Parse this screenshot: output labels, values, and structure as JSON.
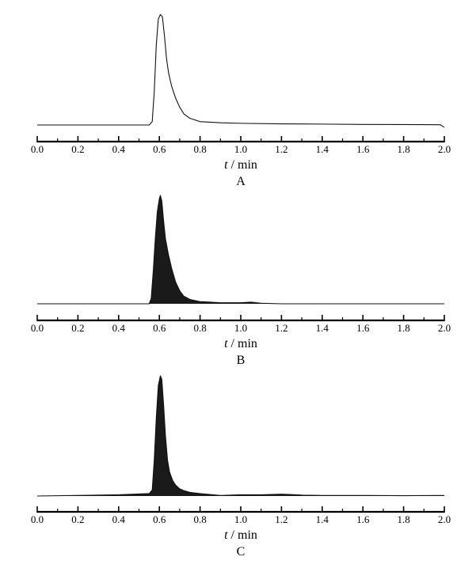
{
  "chart_data": [
    {
      "type": "line",
      "panel_label": "A",
      "xlabel_var": "t",
      "xlabel_unit": " / min",
      "xlim": [
        0.0,
        2.0
      ],
      "ylim": [
        0,
        1
      ],
      "x_ticks": [
        "0.0",
        "0.2",
        "0.4",
        "0.6",
        "0.8",
        "1.0",
        "1.2",
        "1.4",
        "1.6",
        "1.8",
        "2.0"
      ],
      "filled": false,
      "grid": false,
      "series": [
        {
          "x": [
            0.0,
            0.4,
            0.55,
            0.565,
            0.575,
            0.585,
            0.595,
            0.605,
            0.615,
            0.625,
            0.635,
            0.645,
            0.66,
            0.68,
            0.7,
            0.72,
            0.75,
            0.8,
            0.9,
            1.0,
            1.2,
            1.4,
            1.6,
            1.8,
            1.98,
            2.0
          ],
          "y": [
            0.0,
            0.0,
            0.0,
            0.03,
            0.3,
            0.72,
            0.95,
            0.99,
            0.97,
            0.8,
            0.6,
            0.47,
            0.35,
            0.24,
            0.16,
            0.1,
            0.06,
            0.03,
            0.02,
            0.015,
            0.01,
            0.008,
            0.005,
            0.004,
            0.002,
            -0.02
          ]
        }
      ]
    },
    {
      "type": "area",
      "panel_label": "B",
      "xlabel_var": "t",
      "xlabel_unit": " / min",
      "xlim": [
        0.0,
        2.0
      ],
      "ylim": [
        0,
        1
      ],
      "x_ticks": [
        "0.0",
        "0.2",
        "0.4",
        "0.6",
        "0.8",
        "1.0",
        "1.2",
        "1.4",
        "1.6",
        "1.8",
        "2.0"
      ],
      "filled": true,
      "grid": false,
      "series": [
        {
          "x": [
            0.0,
            0.4,
            0.55,
            0.56,
            0.57,
            0.58,
            0.59,
            0.6,
            0.605,
            0.612,
            0.62,
            0.63,
            0.645,
            0.66,
            0.68,
            0.7,
            0.72,
            0.75,
            0.8,
            0.9,
            1.0,
            1.05,
            1.1,
            1.2,
            1.4,
            1.6,
            1.8,
            2.0
          ],
          "y": [
            0.0,
            0.0,
            0.0,
            0.05,
            0.3,
            0.6,
            0.85,
            0.97,
            1.0,
            0.95,
            0.78,
            0.6,
            0.45,
            0.33,
            0.2,
            0.12,
            0.07,
            0.04,
            0.02,
            0.01,
            0.01,
            0.015,
            0.005,
            0.0,
            0.0,
            0.0,
            0.0,
            0.0
          ]
        }
      ]
    },
    {
      "type": "area",
      "panel_label": "C",
      "xlabel_var": "t",
      "xlabel_unit": " / min",
      "xlim": [
        0.0,
        2.0
      ],
      "ylim": [
        0,
        1
      ],
      "x_ticks": [
        "0.0",
        "0.2",
        "0.4",
        "0.6",
        "0.8",
        "1.0",
        "1.2",
        "1.4",
        "1.6",
        "1.8",
        "2.0"
      ],
      "filled": true,
      "grid": false,
      "series": [
        {
          "x": [
            0.0,
            0.4,
            0.55,
            0.565,
            0.575,
            0.585,
            0.595,
            0.605,
            0.612,
            0.62,
            0.63,
            0.64,
            0.65,
            0.665,
            0.68,
            0.7,
            0.72,
            0.75,
            0.8,
            0.9,
            1.0,
            1.1,
            1.2,
            1.25,
            1.3,
            1.4,
            1.6,
            1.8,
            2.0
          ],
          "y": [
            0.0,
            0.01,
            0.02,
            0.05,
            0.3,
            0.65,
            0.92,
            1.0,
            0.97,
            0.78,
            0.5,
            0.3,
            0.2,
            0.13,
            0.09,
            0.06,
            0.045,
            0.03,
            0.02,
            0.005,
            0.01,
            0.01,
            0.015,
            0.012,
            0.008,
            0.005,
            0.005,
            0.003,
            0.005
          ]
        }
      ]
    }
  ]
}
